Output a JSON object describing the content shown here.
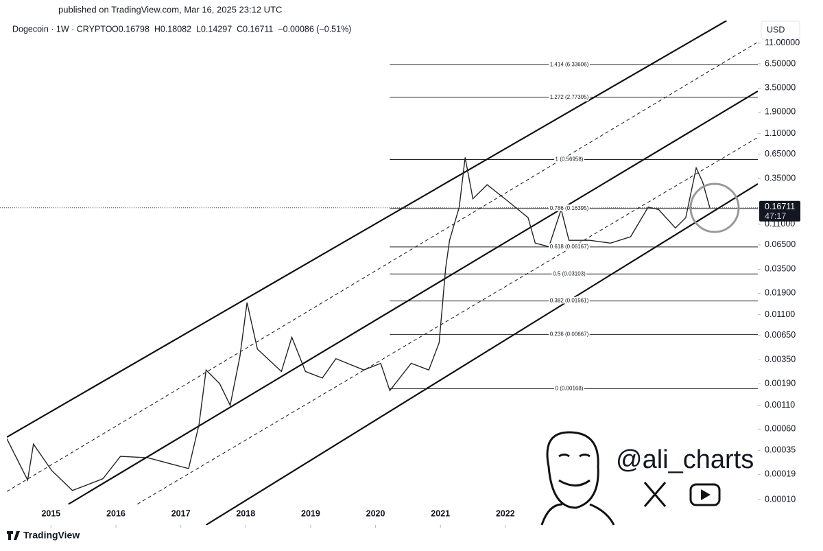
{
  "header": {
    "published": "published on TradingView.com, Mar 16, 2025 23:12 UTC",
    "symbol": "Dogecoin · 1W · CRYPTO",
    "ohlc": "O0.16798  H0.18082  L0.14297  C0.16711  −0.00086 (−0.51%)",
    "currency": "USD"
  },
  "chart_data": {
    "type": "line",
    "log_scale": true,
    "grid": false,
    "x": [
      2014.32,
      2014.64,
      2014.73,
      2015.01,
      2015.33,
      2015.8,
      2016.07,
      2016.49,
      2017.12,
      2017.28,
      2017.39,
      2017.6,
      2017.76,
      2017.91,
      2018.02,
      2018.18,
      2018.55,
      2018.71,
      2018.92,
      2019.18,
      2019.39,
      2019.82,
      2020.08,
      2020.22,
      2020.55,
      2020.82,
      2020.98,
      2021.08,
      2021.14,
      2021.29,
      2021.38,
      2021.5,
      2021.72,
      2022.03,
      2022.35,
      2022.46,
      2022.67,
      2022.86,
      2022.98,
      2023.3,
      2023.62,
      2023.93,
      2024.2,
      2024.36,
      2024.62,
      2024.78,
      2024.94,
      2025.04,
      2025.15
    ],
    "color": "#222222",
    "values": [
      0.00047,
      0.000164,
      0.00041,
      0.00021,
      0.000126,
      0.00017,
      0.0003,
      0.00029,
      0.00022,
      0.00067,
      0.0027,
      0.0019,
      0.0011,
      0.0038,
      0.015,
      0.0046,
      0.0026,
      0.0062,
      0.0026,
      0.0022,
      0.0036,
      0.0027,
      0.0032,
      0.0016,
      0.0032,
      0.0027,
      0.0054,
      0.036,
      0.073,
      0.17,
      0.6,
      0.21,
      0.3,
      0.2,
      0.13,
      0.068,
      0.062,
      0.16,
      0.073,
      0.073,
      0.068,
      0.08,
      0.17,
      0.16,
      0.1,
      0.13,
      0.46,
      0.32,
      0.16711
    ],
    "xlim": [
      2014.32,
      2025.89
    ],
    "xticks": [
      2015,
      2016,
      2017,
      2018,
      2019,
      2020,
      2021,
      2022
    ],
    "ylim": [
      5.25e-05,
      19.5
    ],
    "yticks": [
      {
        "value": 11,
        "label": "11.00000"
      },
      {
        "value": 6.5,
        "label": "6.50000"
      },
      {
        "value": 3.5,
        "label": "3.50000"
      },
      {
        "value": 1.9,
        "label": "1.90000"
      },
      {
        "value": 1.1,
        "label": "1.10000"
      },
      {
        "value": 0.65,
        "label": "0.65000"
      },
      {
        "value": 0.35,
        "label": "0.35000"
      },
      {
        "value": 0.11,
        "label": "0.11000"
      },
      {
        "value": 0.065,
        "label": "0.06500"
      },
      {
        "value": 0.035,
        "label": "0.03500"
      },
      {
        "value": 0.019,
        "label": "0.01900"
      },
      {
        "value": 0.011,
        "label": "0.01100"
      },
      {
        "value": 0.0065,
        "label": "0.00650"
      },
      {
        "value": 0.0035,
        "label": "0.00350"
      },
      {
        "value": 0.0019,
        "label": "0.00190"
      },
      {
        "value": 0.0011,
        "label": "0.00110"
      },
      {
        "value": 0.0006,
        "label": "0.00060"
      },
      {
        "value": 0.00035,
        "label": "0.00035"
      },
      {
        "value": 0.00019,
        "label": "0.00019"
      },
      {
        "value": 0.0001,
        "label": "0.00010"
      }
    ],
    "last_price": 0.16711,
    "countdown": "47:17",
    "fib_levels": [
      {
        "label": "1.414 (6.33606)",
        "value": 6.33606
      },
      {
        "label": "1.272 (2.77305)",
        "value": 2.77305
      },
      {
        "label": "1 (0.56958)",
        "value": 0.56958
      },
      {
        "label": "0.786 (0.16395)",
        "value": 0.16395
      },
      {
        "label": "0.618 (0.06167)",
        "value": 0.06167
      },
      {
        "label": "0.5 (0.03103)",
        "value": 0.03103
      },
      {
        "label": "0.382 (0.01561)",
        "value": 0.01561
      },
      {
        "label": "0.236 (0.00667)",
        "value": 0.00667
      },
      {
        "label": "0 (0.00168)",
        "value": 0.00168
      }
    ],
    "fib_start": 2020.22,
    "channels": [
      {
        "style": "solid",
        "x": [
          2014.32,
          2025.41
        ],
        "y": [
          0.00049,
          19.5
        ]
      },
      {
        "style": "dashed",
        "x": [
          2014.32,
          2025.89
        ],
        "y": [
          0.000123,
          11.3
        ]
      },
      {
        "style": "solid",
        "x": [
          2015.27,
          2025.89
        ],
        "y": [
          8.91e-05,
          3.24
        ]
      },
      {
        "style": "dashed",
        "x": [
          2016.33,
          2025.89
        ],
        "y": [
          8.91e-05,
          1.0
        ]
      },
      {
        "style": "solid",
        "x": [
          2017.39,
          2025.89
        ],
        "y": [
          5.25e-05,
          0.307
        ]
      }
    ]
  },
  "watermark": "@ali_charts",
  "brand": "TradingView"
}
